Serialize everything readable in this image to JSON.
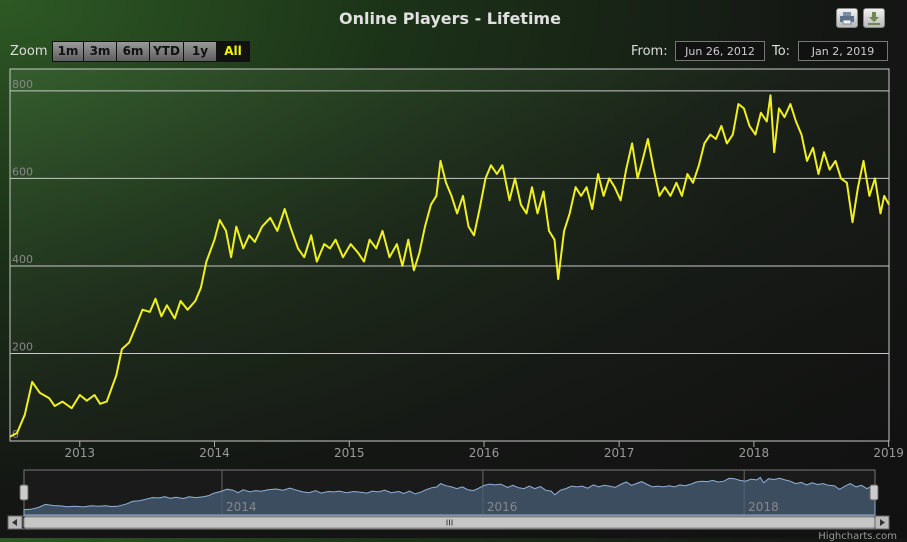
{
  "chart_data": {
    "type": "line",
    "title": "Online Players - Lifetime",
    "series": [
      {
        "values": [
          [
            "2012-06-26",
            10
          ],
          [
            "2012-07-15",
            18
          ],
          [
            "2012-08-05",
            60
          ],
          [
            "2012-08-25",
            135
          ],
          [
            "2012-09-15",
            110
          ],
          [
            "2012-10-10",
            98
          ],
          [
            "2012-10-25",
            80
          ],
          [
            "2012-11-15",
            90
          ],
          [
            "2012-12-10",
            75
          ],
          [
            "2013-01-01",
            105
          ],
          [
            "2013-01-20",
            92
          ],
          [
            "2013-02-10",
            105
          ],
          [
            "2013-02-25",
            85
          ],
          [
            "2013-03-15",
            90
          ],
          [
            "2013-04-10",
            150
          ],
          [
            "2013-04-25",
            210
          ],
          [
            "2013-05-15",
            225
          ],
          [
            "2013-06-01",
            260
          ],
          [
            "2013-06-20",
            300
          ],
          [
            "2013-07-10",
            295
          ],
          [
            "2013-07-25",
            325
          ],
          [
            "2013-08-10",
            285
          ],
          [
            "2013-08-25",
            310
          ],
          [
            "2013-09-15",
            280
          ],
          [
            "2013-10-01",
            320
          ],
          [
            "2013-10-20",
            300
          ],
          [
            "2013-11-10",
            320
          ],
          [
            "2013-11-25",
            350
          ],
          [
            "2013-12-10",
            410
          ],
          [
            "2014-01-01",
            460
          ],
          [
            "2014-01-15",
            505
          ],
          [
            "2014-02-01",
            480
          ],
          [
            "2014-02-15",
            420
          ],
          [
            "2014-03-01",
            490
          ],
          [
            "2014-03-20",
            440
          ],
          [
            "2014-04-05",
            470
          ],
          [
            "2014-04-20",
            455
          ],
          [
            "2014-05-10",
            490
          ],
          [
            "2014-06-01",
            510
          ],
          [
            "2014-06-20",
            480
          ],
          [
            "2014-07-10",
            530
          ],
          [
            "2014-07-25",
            490
          ],
          [
            "2014-08-15",
            440
          ],
          [
            "2014-09-01",
            420
          ],
          [
            "2014-09-20",
            470
          ],
          [
            "2014-10-05",
            410
          ],
          [
            "2014-10-25",
            450
          ],
          [
            "2014-11-10",
            440
          ],
          [
            "2014-11-25",
            460
          ],
          [
            "2014-12-15",
            420
          ],
          [
            "2015-01-05",
            450
          ],
          [
            "2015-01-25",
            430
          ],
          [
            "2015-02-10",
            410
          ],
          [
            "2015-02-25",
            460
          ],
          [
            "2015-03-15",
            440
          ],
          [
            "2015-04-01",
            480
          ],
          [
            "2015-04-20",
            420
          ],
          [
            "2015-05-10",
            450
          ],
          [
            "2015-05-25",
            400
          ],
          [
            "2015-06-10",
            460
          ],
          [
            "2015-06-25",
            390
          ],
          [
            "2015-07-10",
            430
          ],
          [
            "2015-07-25",
            490
          ],
          [
            "2015-08-10",
            540
          ],
          [
            "2015-08-25",
            560
          ],
          [
            "2015-09-05",
            640
          ],
          [
            "2015-09-20",
            590
          ],
          [
            "2015-10-05",
            560
          ],
          [
            "2015-10-20",
            520
          ],
          [
            "2015-11-05",
            560
          ],
          [
            "2015-11-20",
            490
          ],
          [
            "2015-12-05",
            470
          ],
          [
            "2015-12-20",
            530
          ],
          [
            "2016-01-05",
            600
          ],
          [
            "2016-01-20",
            630
          ],
          [
            "2016-02-05",
            610
          ],
          [
            "2016-02-20",
            630
          ],
          [
            "2016-03-10",
            550
          ],
          [
            "2016-03-25",
            600
          ],
          [
            "2016-04-10",
            540
          ],
          [
            "2016-04-25",
            520
          ],
          [
            "2016-05-10",
            580
          ],
          [
            "2016-05-25",
            520
          ],
          [
            "2016-06-10",
            570
          ],
          [
            "2016-06-25",
            480
          ],
          [
            "2016-07-10",
            460
          ],
          [
            "2016-07-20",
            370
          ],
          [
            "2016-08-05",
            480
          ],
          [
            "2016-08-20",
            520
          ],
          [
            "2016-09-05",
            580
          ],
          [
            "2016-09-20",
            560
          ],
          [
            "2016-10-05",
            580
          ],
          [
            "2016-10-20",
            530
          ],
          [
            "2016-11-05",
            610
          ],
          [
            "2016-11-20",
            560
          ],
          [
            "2016-12-05",
            600
          ],
          [
            "2016-12-20",
            580
          ],
          [
            "2017-01-05",
            550
          ],
          [
            "2017-01-20",
            620
          ],
          [
            "2017-02-05",
            680
          ],
          [
            "2017-02-20",
            600
          ],
          [
            "2017-03-05",
            640
          ],
          [
            "2017-03-20",
            690
          ],
          [
            "2017-04-05",
            620
          ],
          [
            "2017-04-20",
            560
          ],
          [
            "2017-05-05",
            580
          ],
          [
            "2017-05-20",
            560
          ],
          [
            "2017-06-05",
            590
          ],
          [
            "2017-06-20",
            560
          ],
          [
            "2017-07-05",
            610
          ],
          [
            "2017-07-20",
            590
          ],
          [
            "2017-08-05",
            630
          ],
          [
            "2017-08-20",
            680
          ],
          [
            "2017-09-05",
            700
          ],
          [
            "2017-09-20",
            690
          ],
          [
            "2017-10-05",
            720
          ],
          [
            "2017-10-20",
            680
          ],
          [
            "2017-11-05",
            700
          ],
          [
            "2017-11-20",
            770
          ],
          [
            "2017-12-05",
            760
          ],
          [
            "2017-12-20",
            720
          ],
          [
            "2018-01-05",
            700
          ],
          [
            "2018-01-20",
            750
          ],
          [
            "2018-02-05",
            730
          ],
          [
            "2018-02-15",
            790
          ],
          [
            "2018-02-25",
            660
          ],
          [
            "2018-03-10",
            760
          ],
          [
            "2018-03-25",
            740
          ],
          [
            "2018-04-10",
            770
          ],
          [
            "2018-04-25",
            730
          ],
          [
            "2018-05-10",
            700
          ],
          [
            "2018-05-25",
            640
          ],
          [
            "2018-06-10",
            670
          ],
          [
            "2018-06-25",
            610
          ],
          [
            "2018-07-10",
            660
          ],
          [
            "2018-07-25",
            620
          ],
          [
            "2018-08-10",
            640
          ],
          [
            "2018-08-25",
            600
          ],
          [
            "2018-09-10",
            590
          ],
          [
            "2018-09-25",
            500
          ],
          [
            "2018-10-10",
            580
          ],
          [
            "2018-10-25",
            640
          ],
          [
            "2018-11-10",
            560
          ],
          [
            "2018-11-25",
            600
          ],
          [
            "2018-12-10",
            520
          ],
          [
            "2018-12-20",
            560
          ],
          [
            "2019-01-02",
            540
          ]
        ]
      }
    ],
    "xlim": [
      "2012-06-26",
      "2019-01-02"
    ],
    "ylim": [
      0,
      850
    ],
    "y_ticks": [
      "0",
      "200",
      "400",
      "600",
      "800"
    ],
    "x_ticks": [
      "2013",
      "2014",
      "2015",
      "2016",
      "2017",
      "2018",
      "2019"
    ],
    "navigator_ticks": [
      "2014",
      "2016",
      "2018"
    ],
    "line_color": "#f0f020",
    "grid": true
  },
  "zoom": {
    "label": "Zoom",
    "buttons": [
      "1m",
      "3m",
      "6m",
      "YTD",
      "1y",
      "All"
    ],
    "active": "All"
  },
  "range": {
    "from_label": "From:",
    "from_value": "Jun 26, 2012",
    "to_label": "To:",
    "to_value": "Jan 2, 2019"
  },
  "credits": "Highcharts.com"
}
